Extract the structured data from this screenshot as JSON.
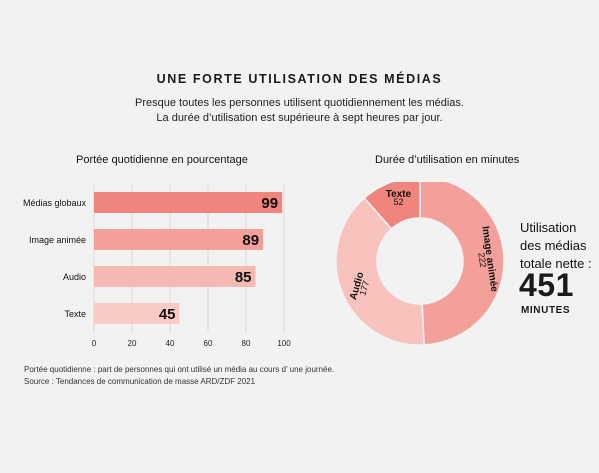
{
  "header": {
    "title": "UNE FORTE UTILISATION DES MÉDIAS",
    "subtitle_line1": "Presque toutes les personnes utilisent quotidiennement les médias.",
    "subtitle_line2": "La durée d’utilisation est supérieure à sept heures par jour."
  },
  "colors": {
    "background": "#f2f2f2",
    "bar_medias_globaux": "#f0857e",
    "bar_image_animee": "#f3a09a",
    "bar_audio": "#f6b8b2",
    "bar_texte": "#f9cbc6",
    "donut_image_animee": "#f3a09a",
    "donut_audio": "#f8c2bd",
    "donut_texte": "#f0857e"
  },
  "chart_data": [
    {
      "type": "bar",
      "orientation": "horizontal",
      "title": "Portée quotidienne en pourcentage",
      "categories": [
        "Médias globaux",
        "Image animée",
        "Audio",
        "Texte"
      ],
      "values": [
        99,
        89,
        85,
        45
      ],
      "data_labels": [
        "99",
        "89",
        "85",
        "45"
      ],
      "xlim": [
        0,
        100
      ],
      "xticks": [
        0,
        20,
        40,
        60,
        80,
        100
      ],
      "xtick_labels": [
        "0",
        "20",
        "40",
        "60",
        "80",
        "100"
      ],
      "grid": true
    },
    {
      "type": "pie",
      "donut": true,
      "title": "Durée d’utilisation en minutes",
      "slices": [
        {
          "label": "Image animée",
          "value": 222,
          "value_label": "222"
        },
        {
          "label": "Audio",
          "value": 177,
          "value_label": "177"
        },
        {
          "label": "Texte",
          "value": 52,
          "value_label": "52"
        }
      ]
    }
  ],
  "total": {
    "label_line1": "Utilisation",
    "label_line2": "des médias",
    "label_line3": "totale nette :",
    "value": "451",
    "unit": "MINUTES"
  },
  "notes": {
    "line1": "Portée quotidienne : part de personnes qui ont utilisé un média au cours d’ une journée.",
    "line2": "Source : Tendances de communication de masse ARD/ZDF 2021"
  }
}
